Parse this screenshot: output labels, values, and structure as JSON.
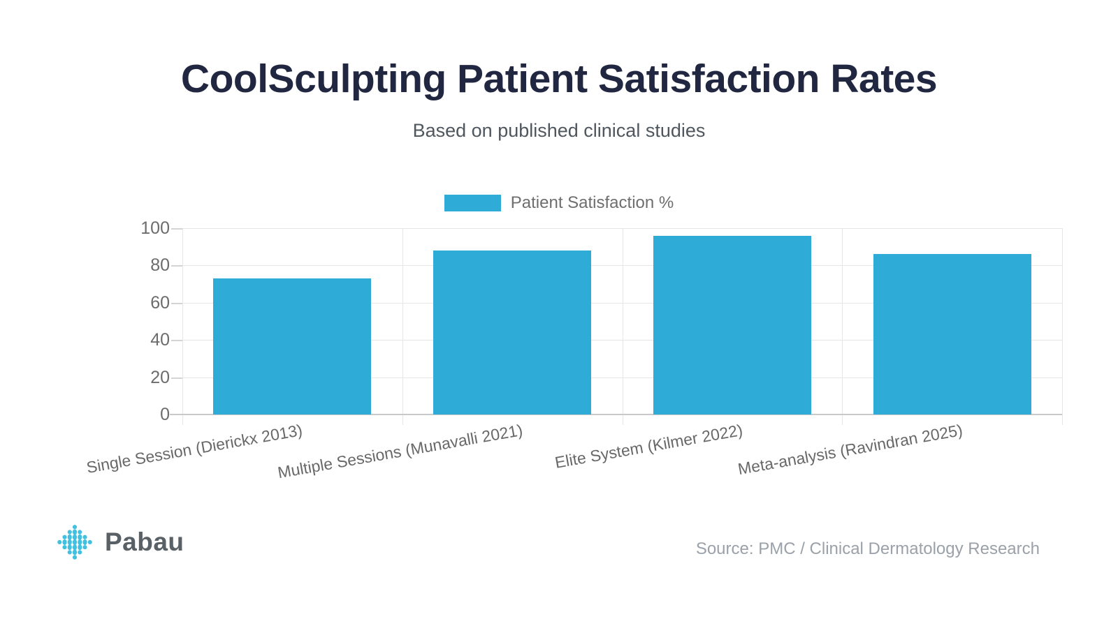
{
  "header": {
    "title": "CoolSculpting Patient Satisfaction Rates",
    "subtitle": "Based on published clinical studies"
  },
  "legend": {
    "label": "Patient Satisfaction %"
  },
  "chart_data": {
    "type": "bar",
    "title": "CoolSculpting Patient Satisfaction Rates",
    "subtitle": "Based on published clinical studies",
    "categories": [
      "Single Session (Dierickx 2013)",
      "Multiple Sessions (Munavalli 2021)",
      "Elite System (Kilmer 2022)",
      "Meta-analysis (Ravindran 2025)"
    ],
    "series": [
      {
        "name": "Patient Satisfaction %",
        "values": [
          73,
          88,
          96,
          86
        ]
      }
    ],
    "xlabel": "",
    "ylabel": "",
    "ylim": [
      0,
      100
    ],
    "yticks": [
      0,
      20,
      40,
      60,
      80,
      100
    ],
    "grid": true,
    "legend_position": "top",
    "bar_color": "#2eabd6"
  },
  "footer": {
    "brand": "Pabau",
    "brand_color": "#41c0e0",
    "source": "Source: PMC / Clinical Dermatology Research"
  }
}
